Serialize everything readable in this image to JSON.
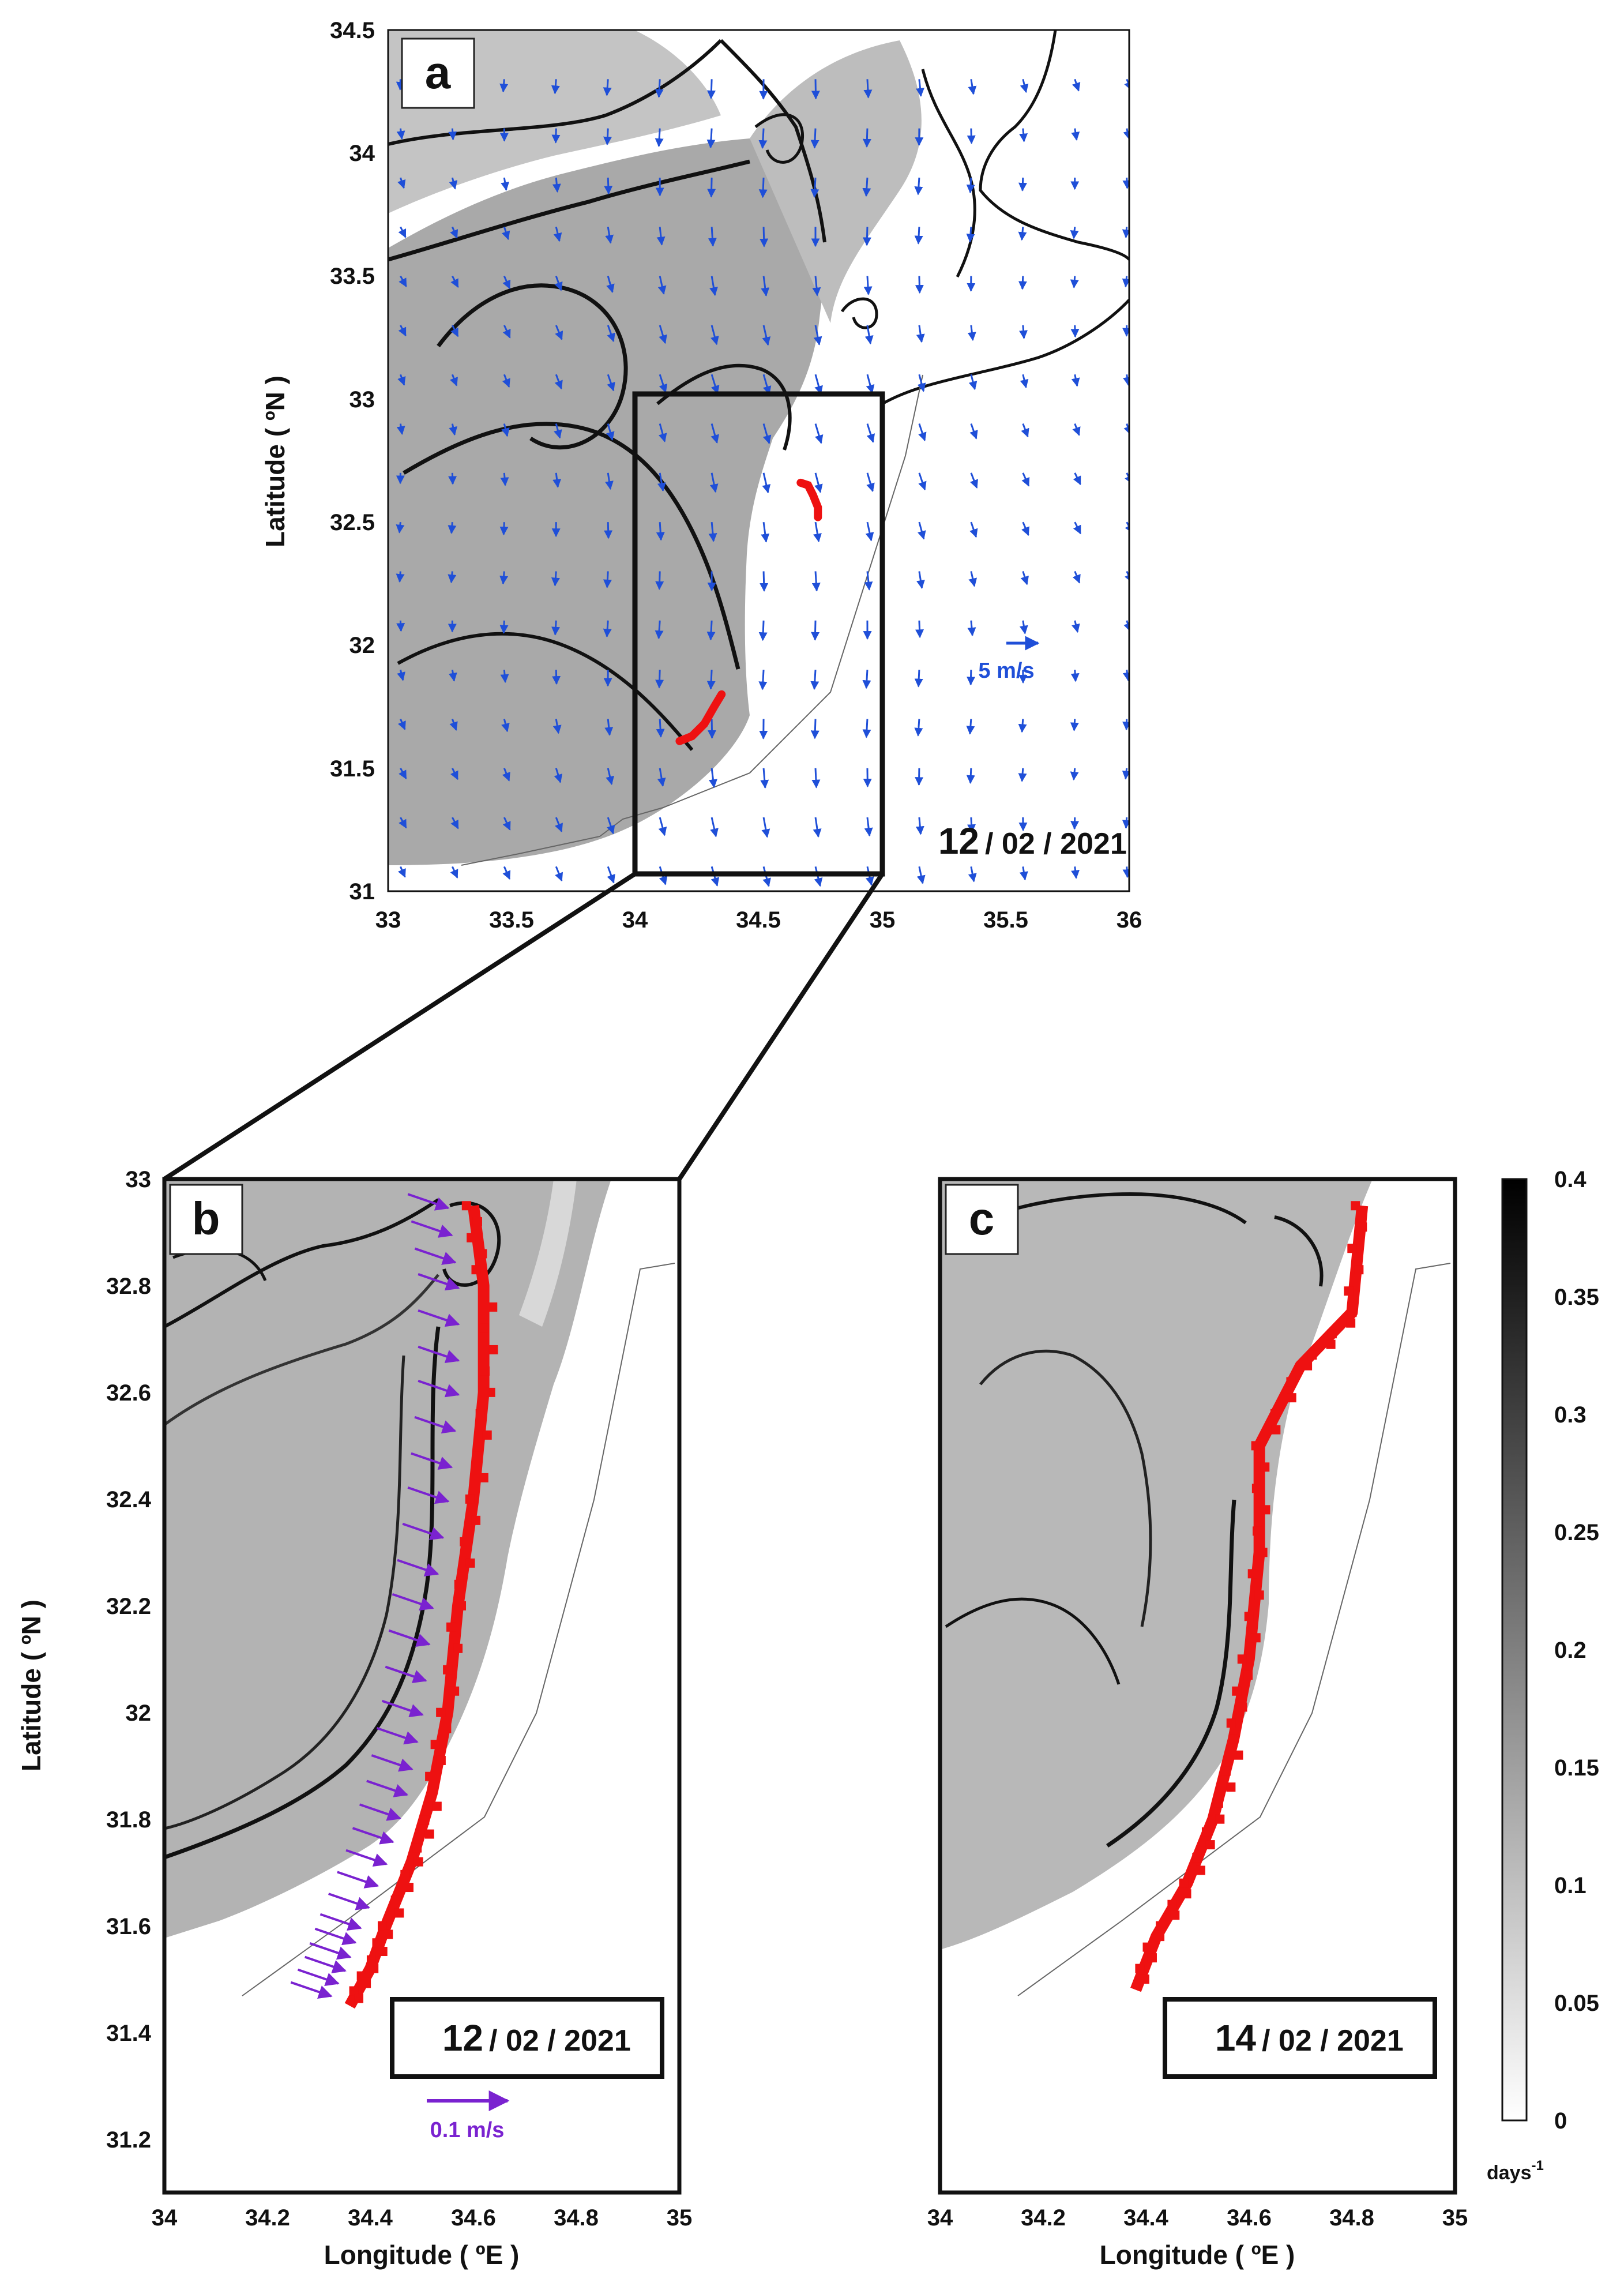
{
  "chart_data": [
    {
      "panel": "a",
      "type": "heatmap",
      "xlabel": "",
      "ylabel": "Latitude ( ºN )",
      "xlim": [
        33,
        36
      ],
      "ylim": [
        31,
        34.5
      ],
      "xticks": [
        "33",
        "33.5",
        "34",
        "34.5",
        "35",
        "35.5",
        "36"
      ],
      "yticks": [
        "31",
        "31.5",
        "32",
        "32.5",
        "33",
        "33.5",
        "34",
        "34.5"
      ],
      "date_day": "12",
      "date_rest": "/ 02 / 2021",
      "vector_scale_label": "5 m/s",
      "zoom_box": {
        "lon": [
          34,
          35
        ],
        "lat": [
          31,
          33
        ]
      },
      "red_features": [
        {
          "lon": [
            34.67,
            34.7,
            34.72,
            34.74,
            34.74
          ],
          "lat": [
            32.66,
            32.65,
            32.61,
            32.56,
            32.52
          ]
        },
        {
          "lon": [
            34.18,
            34.23,
            34.28,
            34.32,
            34.35
          ],
          "lat": [
            31.61,
            31.63,
            31.68,
            31.75,
            31.8
          ]
        }
      ]
    },
    {
      "panel": "b",
      "type": "heatmap",
      "xlabel": "Longitude ( ºE )",
      "ylabel": "Latitude ( ºN )",
      "xlim": [
        34,
        35
      ],
      "ylim": [
        31.1,
        33
      ],
      "xticks": [
        "34",
        "34.2",
        "34.4",
        "34.6",
        "34.8",
        "35"
      ],
      "yticks": [
        "31.2",
        "31.4",
        "31.6",
        "31.8",
        "32",
        "32.2",
        "32.4",
        "32.6",
        "32.8",
        "33"
      ],
      "date_day": "12",
      "date_rest": "/ 02 / 2021",
      "vector_scale_label": "0.1 m/s",
      "red_front": {
        "lon": [
          34.6,
          34.62,
          34.62,
          34.6,
          34.57,
          34.55,
          34.52,
          34.48,
          34.43,
          34.4,
          34.36
        ],
        "lat": [
          32.95,
          32.8,
          32.6,
          32.4,
          32.2,
          32.0,
          31.85,
          31.72,
          31.6,
          31.52,
          31.45
        ]
      }
    },
    {
      "panel": "c",
      "type": "heatmap",
      "xlabel": "Longitude ( ºE )",
      "ylabel": "",
      "xlim": [
        34,
        35
      ],
      "ylim": [
        31.1,
        33
      ],
      "xticks": [
        "34",
        "34.2",
        "34.4",
        "34.6",
        "34.8",
        "35"
      ],
      "date_day": "14",
      "date_rest": "/ 02 / 2021",
      "red_front": {
        "lon": [
          34.82,
          34.8,
          34.7,
          34.62,
          34.62,
          34.6,
          34.57,
          34.53,
          34.48,
          34.42,
          34.38
        ],
        "lat": [
          32.95,
          32.75,
          32.65,
          32.5,
          32.3,
          32.1,
          31.95,
          31.8,
          31.68,
          31.58,
          31.48
        ]
      }
    }
  ],
  "colorbar": {
    "ticks": [
      "0",
      "0.05",
      "0.1",
      "0.15",
      "0.2",
      "0.25",
      "0.3",
      "0.35",
      "0.4"
    ],
    "range": [
      0,
      0.4
    ],
    "unit": "days",
    "unit_exponent": "-1",
    "colors": [
      "#ffffff",
      "#000000"
    ]
  },
  "colors": {
    "vector_a": "#1f4fd8",
    "vector_b": "#7a22d0",
    "front": "#ee1111"
  }
}
